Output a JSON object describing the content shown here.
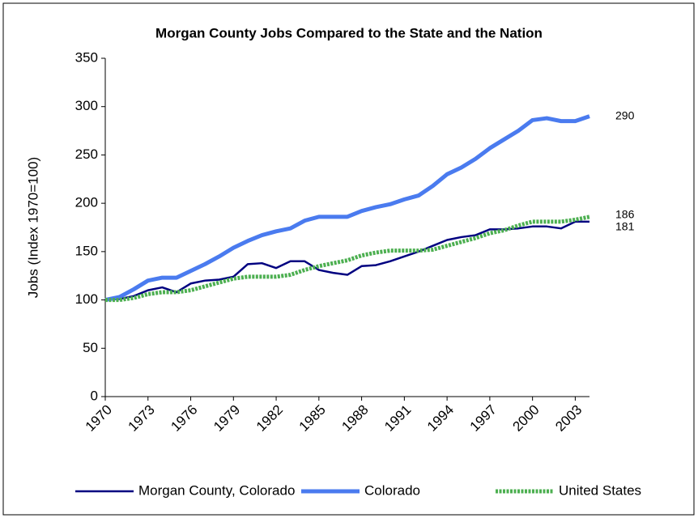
{
  "chart_data": {
    "type": "line",
    "title": "Morgan County Jobs Compared to the State and the Nation",
    "y_label": "Jobs (Index 1970=100)",
    "x": [
      1970,
      1971,
      1972,
      1973,
      1974,
      1975,
      1976,
      1977,
      1978,
      1979,
      1980,
      1981,
      1982,
      1983,
      1984,
      1985,
      1986,
      1987,
      1988,
      1989,
      1990,
      1991,
      1992,
      1993,
      1994,
      1995,
      1996,
      1997,
      1998,
      1999,
      2000,
      2001,
      2002,
      2003,
      2004
    ],
    "xlim": [
      1970,
      2004
    ],
    "xticks": [
      1970,
      1973,
      1976,
      1979,
      1982,
      1985,
      1988,
      1991,
      1994,
      1997,
      2000,
      2003
    ],
    "ylim": [
      0,
      350
    ],
    "yticks": [
      0,
      50,
      100,
      150,
      200,
      250,
      300,
      350
    ],
    "grid": false,
    "legend": "bottom",
    "series": [
      {
        "name": "Morgan County, Colorado",
        "color": "#000080",
        "values": [
          100,
          101,
          104,
          110,
          113,
          108,
          117,
          120,
          121,
          124,
          137,
          138,
          133,
          140,
          140,
          131,
          128,
          126,
          135,
          136,
          140,
          145,
          150,
          156,
          162,
          165,
          167,
          173,
          173,
          174,
          176,
          176,
          174,
          181,
          181
        ]
      },
      {
        "name": "Colorado",
        "color": "#4a7bef",
        "values": [
          100,
          103,
          111,
          120,
          123,
          123,
          130,
          137,
          145,
          154,
          161,
          167,
          171,
          174,
          182,
          186,
          186,
          186,
          192,
          196,
          199,
          204,
          208,
          218,
          230,
          237,
          246,
          257,
          266,
          275,
          286,
          288,
          285,
          285,
          290
        ]
      },
      {
        "name": "United States",
        "color": "#4caf50",
        "values": [
          100,
          100,
          102,
          106,
          108,
          108,
          110,
          114,
          118,
          122,
          124,
          124,
          124,
          126,
          131,
          135,
          138,
          141,
          146,
          149,
          151,
          151,
          151,
          152,
          156,
          160,
          164,
          169,
          172,
          177,
          181,
          181,
          181,
          183,
          186
        ]
      }
    ]
  }
}
